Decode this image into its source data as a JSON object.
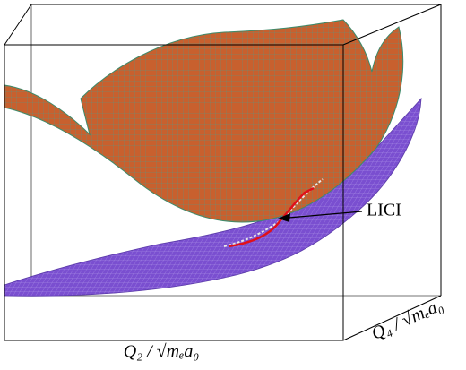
{
  "figure": {
    "x_axis_label": "Q₂ / √mₑa₀",
    "y_axis_label": "Q₄ / √mₑa₀",
    "annotation": "LICI"
  }
}
